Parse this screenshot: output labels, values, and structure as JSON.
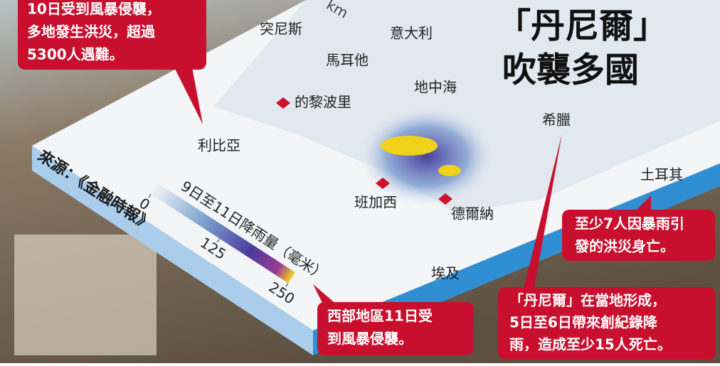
{
  "title": [
    "「丹尼爾」",
    "吹襲多國"
  ],
  "scale_label": "km",
  "source": "來源：《金融時報》",
  "places": [
    "突尼斯",
    "意大利",
    "馬耳他",
    "地中海",
    "的黎波里",
    "希臘",
    "利比亞",
    "土耳其",
    "班加西",
    "德爾納",
    "埃及"
  ],
  "callouts": [
    {
      "lines": [
        "10日受到風暴侵襲，",
        "多地發生洪災，超過",
        "5300人遇難。"
      ]
    },
    {
      "lines": [
        "至少7人因暴雨引",
        "發的洪災身亡。"
      ]
    },
    {
      "lines": [
        "「丹尼爾」在當地形成，",
        "5日至6日帶來創紀錄降",
        "雨，造成至少15人死亡。"
      ]
    },
    {
      "lines": [
        "西部地區11日受",
        "到風暴侵襲。"
      ]
    }
  ],
  "legend": {
    "title": "9日至11日降雨量（毫米）",
    "range": [
      0,
      250
    ],
    "ticks": [
      0,
      125,
      250
    ]
  }
}
